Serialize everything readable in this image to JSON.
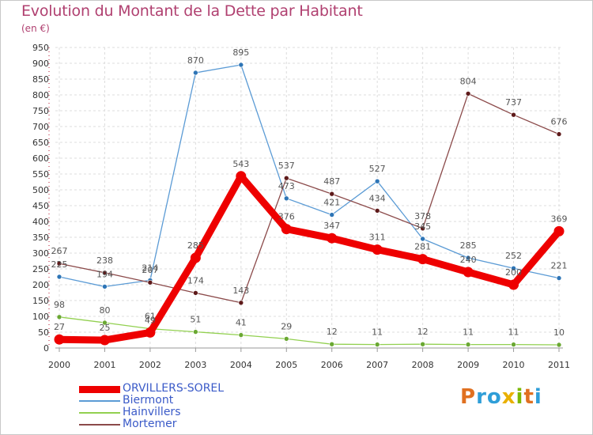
{
  "title": "Evolution du Montant de la Dette par Habitant",
  "subtitle": "(en €)",
  "logo": "Proxiti",
  "chart_data": {
    "type": "line",
    "title": "Evolution du Montant de la Dette par Habitant",
    "ylabel": "(en €)",
    "xlabel": "",
    "ylim": [
      0,
      950
    ],
    "yticks": [
      0,
      50,
      100,
      150,
      200,
      250,
      300,
      350,
      400,
      450,
      500,
      550,
      600,
      650,
      700,
      750,
      800,
      850,
      900,
      950
    ],
    "categories": [
      "2000",
      "2001",
      "2002",
      "2003",
      "2004",
      "2005",
      "2006",
      "2007",
      "2008",
      "2009",
      "2010",
      "2011"
    ],
    "grid": true,
    "legend_position": "bottom-left",
    "series": [
      {
        "name": "Biermont",
        "color": "#5b9bd5",
        "width": 1.3,
        "values": [
          225,
          194,
          214,
          870,
          895,
          473,
          421,
          527,
          345,
          285,
          252,
          221
        ]
      },
      {
        "name": "Hainvillers",
        "color": "#92d050",
        "width": 1.3,
        "values": [
          98,
          80,
          61,
          51,
          41,
          29,
          12,
          11,
          12,
          11,
          11,
          10
        ]
      },
      {
        "name": "Mortemer",
        "color": "#8b4a4a",
        "width": 1.3,
        "values": [
          267,
          238,
          207,
          174,
          143,
          537,
          487,
          434,
          378,
          804,
          737,
          676
        ]
      },
      {
        "name": "ORVILLERS-SOREL",
        "color": "#ee0000",
        "width": 9,
        "values": [
          27,
          25,
          49,
          285,
          543,
          376,
          347,
          311,
          281,
          240,
          200,
          369
        ]
      }
    ],
    "legend_order": [
      "ORVILLERS-SOREL",
      "Biermont",
      "Hainvillers",
      "Mortemer"
    ]
  }
}
